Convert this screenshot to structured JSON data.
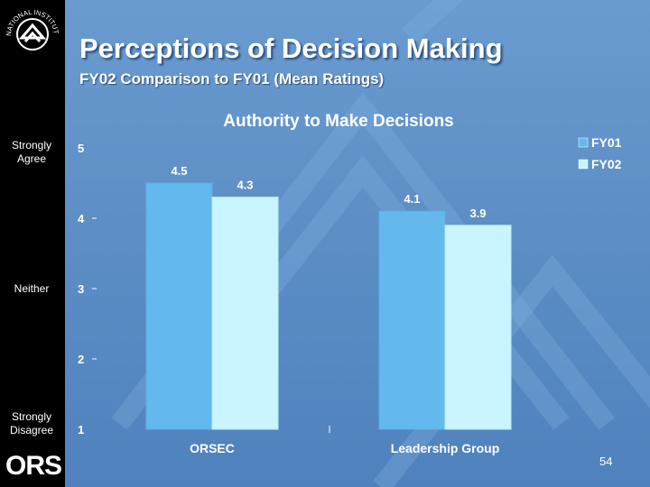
{
  "slide": {
    "title": "Perceptions of Decision Making",
    "subtitle": "FY02 Comparison to FY01 (Mean Ratings)",
    "page_number": "54",
    "logo_text": "NATIONAL INSTITUTES OF HEALTH",
    "ors_logo": "ORS"
  },
  "side_labels": {
    "top": "Strongly Agree",
    "middle": "Neither",
    "bottom": "Strongly Disagree"
  },
  "colors": {
    "background": "#5d8fc6",
    "fy01": "#63b8ee",
    "fy02": "#c8f5ff"
  },
  "chart_data": {
    "type": "bar",
    "title": "Authority to Make Decisions",
    "categories": [
      "ORSEC",
      "Leadership Group"
    ],
    "series": [
      {
        "name": "FY01",
        "values": [
          4.5,
          4.1
        ]
      },
      {
        "name": "FY02",
        "values": [
          4.3,
          3.9
        ]
      }
    ],
    "ylim": [
      1,
      5
    ],
    "yticks": [
      "1",
      "2",
      "3",
      "4",
      "5"
    ],
    "data_labels": [
      [
        "4.5",
        "4.3"
      ],
      [
        "4.1",
        "3.9"
      ]
    ],
    "legend_position": "top-right"
  }
}
